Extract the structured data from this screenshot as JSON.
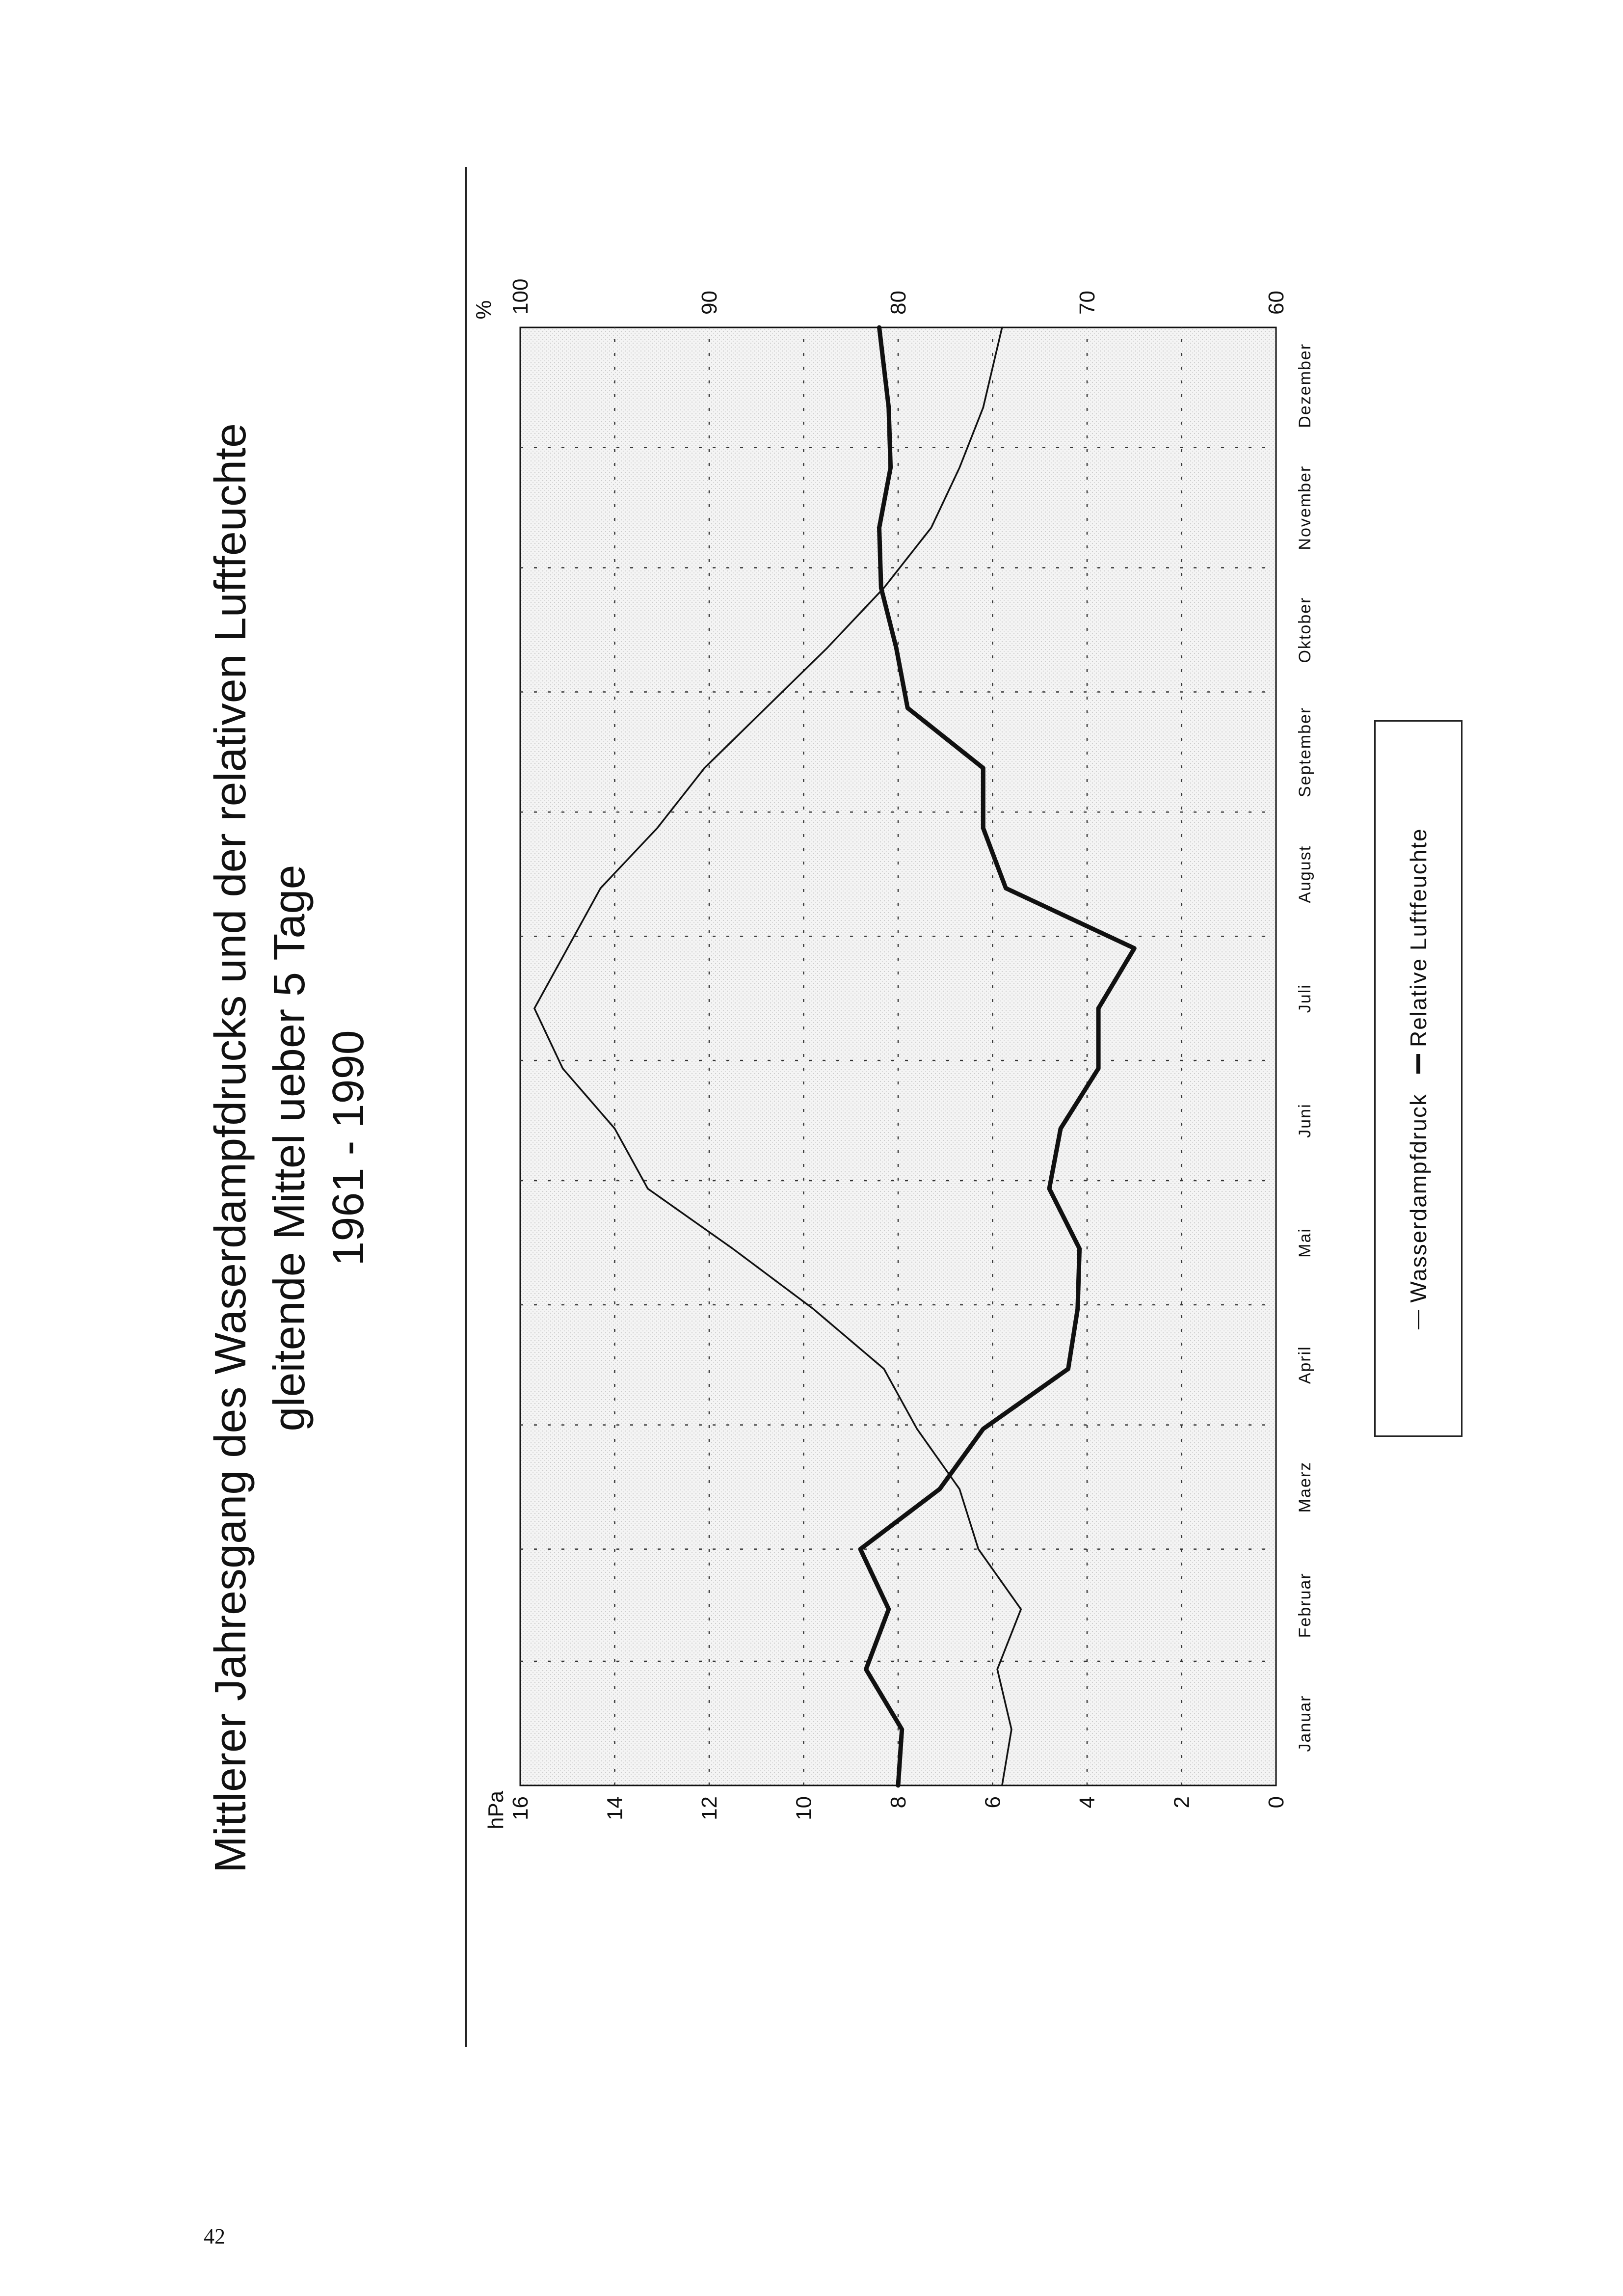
{
  "page_number": "42",
  "title_lines": [
    "Mittlerer Jahresgang des Waserdampfdrucks und der relativen Luftfeuchte",
    "gleitende Mittel ueber 5 Tage",
    "1961 - 1990"
  ],
  "legend": {
    "items": [
      "Wasserdampfdruck",
      "Relative Luftfeuchte"
    ]
  },
  "chart_data": {
    "type": "line",
    "title": "Mittlerer Jahresgang des Waserdampfdrucks und der relativen Luftfeuchte gleitende Mittel ueber 5 Tage 1961 - 1990",
    "x_categories": [
      "Januar",
      "Februar",
      "Maerz",
      "April",
      "Mai",
      "Juni",
      "Juli",
      "August",
      "September",
      "Oktober",
      "November",
      "Dezember"
    ],
    "y_left": {
      "label": "hPa",
      "min": 0,
      "max": 16,
      "ticks": [
        "0",
        "2",
        "4",
        "6",
        "8",
        "10",
        "12",
        "14",
        "16"
      ]
    },
    "y_right": {
      "label": "%",
      "min": 60,
      "max": 100,
      "ticks": [
        "60",
        "70",
        "80",
        "90",
        "100"
      ]
    },
    "grid": true,
    "legend_position": "bottom-right",
    "series": [
      {
        "name": "Wasserdampfdruck",
        "axis": "left",
        "line": "thin",
        "x_day": [
          1,
          15,
          30,
          45,
          60,
          75,
          90,
          105,
          120,
          135,
          150,
          165,
          180,
          195,
          210,
          225,
          240,
          255,
          270,
          285,
          300,
          315,
          330,
          345,
          365
        ],
        "y": [
          5.8,
          5.6,
          5.9,
          5.4,
          6.3,
          6.7,
          7.6,
          8.3,
          9.8,
          11.5,
          13.3,
          14.0,
          15.1,
          15.7,
          15.0,
          14.3,
          13.1,
          12.1,
          10.8,
          9.5,
          8.3,
          7.3,
          6.7,
          6.2,
          5.8
        ]
      },
      {
        "name": "Relative Luftfeuchte",
        "axis": "right",
        "line": "thick",
        "x_day": [
          1,
          15,
          30,
          45,
          60,
          75,
          90,
          105,
          120,
          135,
          150,
          165,
          180,
          195,
          210,
          225,
          240,
          255,
          270,
          285,
          300,
          315,
          330,
          345,
          365
        ],
        "y": [
          80.0,
          79.8,
          81.7,
          80.5,
          82.0,
          77.8,
          75.5,
          71.0,
          70.5,
          70.4,
          72.0,
          71.4,
          69.4,
          69.4,
          67.5,
          74.3,
          75.5,
          75.5,
          79.5,
          80.1,
          80.9,
          81.0,
          80.4,
          80.5,
          81.0
        ]
      }
    ]
  }
}
